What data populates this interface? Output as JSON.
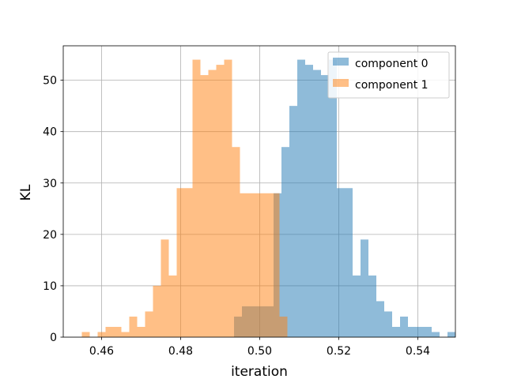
{
  "chart_data": {
    "type": "bar",
    "xlabel": "iteration",
    "ylabel": "KL",
    "xlim": [
      0.4503,
      0.5495
    ],
    "ylim": [
      0,
      56.7
    ],
    "xticks": [
      0.46,
      0.48,
      0.5,
      0.52,
      0.54
    ],
    "xtick_labels": [
      "0.46",
      "0.48",
      "0.50",
      "0.52",
      "0.54"
    ],
    "yticks": [
      0,
      10,
      20,
      30,
      40,
      50
    ],
    "ytick_labels": [
      "0",
      "10",
      "20",
      "30",
      "40",
      "50"
    ],
    "grid": true,
    "legend_position": "top-right",
    "series": [
      {
        "name": "component 0",
        "color": "#1f77b4",
        "alpha": 0.5,
        "x_start": 0.4935,
        "bin_width": 0.002,
        "counts": [
          4,
          6,
          6,
          6,
          6,
          28,
          37,
          45,
          54,
          53,
          52,
          51,
          54,
          29,
          29,
          12,
          19,
          12,
          7,
          5,
          2,
          4,
          2,
          2,
          2,
          1,
          0,
          1
        ]
      },
      {
        "name": "component 1",
        "color": "#ff7f0e",
        "alpha": 0.5,
        "x_start": 0.455,
        "bin_width": 0.002,
        "counts": [
          1,
          0,
          1,
          2,
          2,
          1,
          4,
          2,
          5,
          10,
          19,
          12,
          29,
          29,
          54,
          51,
          52,
          53,
          54,
          37,
          28,
          28,
          28,
          28,
          28,
          4
        ]
      }
    ]
  }
}
